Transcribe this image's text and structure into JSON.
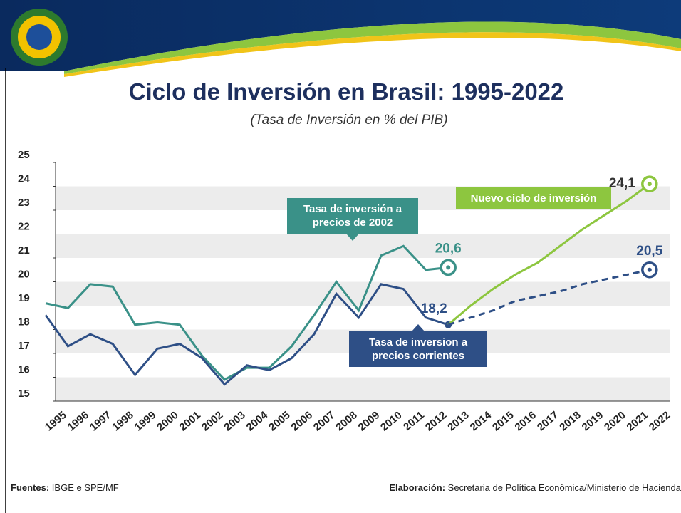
{
  "chart_data": {
    "type": "line",
    "title": "Ciclo de Inversión en Brasil: 1995-2022",
    "subtitle": "(Tasa de Inversión en % del PIB)",
    "categories": [
      "1995",
      "1996",
      "1997",
      "1998",
      "1999",
      "2000",
      "2001",
      "2002",
      "2003",
      "2004",
      "2005",
      "2006",
      "2007",
      "2008",
      "2009",
      "2010",
      "2011",
      "2012",
      "2013",
      "2014",
      "2015",
      "2016",
      "2017",
      "2018",
      "2019",
      "2020",
      "2021",
      "2022"
    ],
    "ylim": [
      15,
      25
    ],
    "yticks": [
      15,
      16,
      17,
      18,
      19,
      20,
      21,
      22,
      23,
      24,
      25
    ],
    "grid": "bands",
    "series": [
      {
        "name": "Tasa de inversión a precios de 2002",
        "color": "#3a9188",
        "marker": "ring",
        "values": [
          19.1,
          18.9,
          19.9,
          19.8,
          18.2,
          18.3,
          18.2,
          16.9,
          15.9,
          16.4,
          16.4,
          17.3,
          18.6,
          20.0,
          18.8,
          21.1,
          21.5,
          20.5,
          20.6,
          null,
          null,
          null,
          null,
          null,
          null,
          null,
          null,
          null
        ],
        "value_labels": [
          null,
          null,
          null,
          null,
          null,
          null,
          null,
          null,
          null,
          null,
          null,
          null,
          null,
          null,
          null,
          null,
          null,
          null,
          "20,6",
          null,
          null,
          null,
          null,
          null,
          null,
          null,
          null,
          null
        ]
      },
      {
        "name": "Tasa de inversion a precios corrientes",
        "color": "#2e4f86",
        "marker": "dot",
        "values": [
          18.6,
          17.3,
          17.8,
          17.4,
          16.1,
          17.2,
          17.4,
          16.8,
          15.7,
          16.5,
          16.3,
          16.8,
          17.8,
          19.5,
          18.5,
          19.9,
          19.7,
          18.5,
          18.2,
          null,
          null,
          null,
          null,
          null,
          null,
          null,
          null,
          null
        ],
        "value_labels": [
          null,
          null,
          null,
          null,
          null,
          null,
          null,
          null,
          null,
          null,
          null,
          null,
          null,
          null,
          null,
          null,
          null,
          null,
          "18,2",
          null,
          null,
          null,
          null,
          null,
          null,
          null,
          null,
          null
        ]
      },
      {
        "name": "Nuevo ciclo de inversión",
        "color": "#8dc63f",
        "marker": "ring",
        "values": [
          null,
          null,
          null,
          null,
          null,
          null,
          null,
          null,
          null,
          null,
          null,
          null,
          null,
          null,
          null,
          null,
          null,
          null,
          18.2,
          19.0,
          19.7,
          20.3,
          20.8,
          21.5,
          22.2,
          22.8,
          23.4,
          24.1
        ],
        "value_labels": [
          null,
          null,
          null,
          null,
          null,
          null,
          null,
          null,
          null,
          null,
          null,
          null,
          null,
          null,
          null,
          null,
          null,
          null,
          null,
          null,
          null,
          null,
          null,
          null,
          null,
          null,
          null,
          "24,1"
        ]
      },
      {
        "color": "#2e4f86",
        "dash": true,
        "marker": "ring",
        "values": [
          null,
          null,
          null,
          null,
          null,
          null,
          null,
          null,
          null,
          null,
          null,
          null,
          null,
          null,
          null,
          null,
          null,
          null,
          18.2,
          18.5,
          18.8,
          19.2,
          19.4,
          19.6,
          19.9,
          20.1,
          20.3,
          20.5
        ],
        "value_labels": [
          null,
          null,
          null,
          null,
          null,
          null,
          null,
          null,
          null,
          null,
          null,
          null,
          null,
          null,
          null,
          null,
          null,
          null,
          null,
          null,
          null,
          null,
          null,
          null,
          null,
          null,
          null,
          "20,5"
        ]
      }
    ]
  },
  "footer": {
    "sources_label": "Fuentes:",
    "sources": "IBGE e SPE/MF",
    "credit_label": "Elaboración:",
    "credit": "Secretaria de Política Econômica/Ministerio de Hacienda"
  }
}
